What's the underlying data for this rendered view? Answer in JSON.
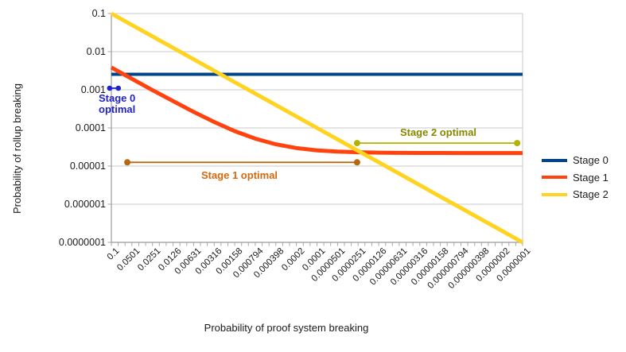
{
  "figure": {
    "y_axis_title": "Probability of rollup breaking",
    "x_axis_title": "Probability of proof system breaking"
  },
  "chart_data": {
    "type": "line",
    "x_scale": "log",
    "y_scale": "log",
    "xlim": [
      0.1,
      1e-07
    ],
    "ylim": [
      0.1,
      1e-07
    ],
    "grid": "horizontal-only",
    "x_tick_labels": [
      "0.1",
      "0.0501",
      "0.0251",
      "0.0126",
      "0.00631",
      "0.00316",
      "0.00158",
      "0.000794",
      "0.000398",
      "0.0002",
      "0.0001",
      "0.0000501",
      "0.0000251",
      "0.0000126",
      "0.00000631",
      "0.00000316",
      "0.00000158",
      "0.000000794",
      "0.000000398",
      "0.0000002",
      "0.0000001"
    ],
    "y_tick_labels": [
      "0.1",
      "0.01",
      "0.001",
      "0.0001",
      "0.00001",
      "0.000001",
      "0.0000001"
    ],
    "x": [
      0.1,
      0.0501,
      0.0251,
      0.0126,
      0.00631,
      0.00316,
      0.00158,
      0.000794,
      0.000398,
      0.0002,
      0.0001,
      5.01e-05,
      2.51e-05,
      1.26e-05,
      6.31e-06,
      3.16e-06,
      1.58e-06,
      7.94e-07,
      3.98e-07,
      2e-07,
      1e-07
    ],
    "series": [
      {
        "name": "Stage 0",
        "color": "#004586",
        "values": [
          0.00255,
          0.00255,
          0.00255,
          0.00255,
          0.00255,
          0.00255,
          0.00255,
          0.00255,
          0.00255,
          0.00255,
          0.00255,
          0.00255,
          0.00255,
          0.00255,
          0.00255,
          0.00255,
          0.00255,
          0.00255,
          0.00255,
          0.00255,
          0.00255
        ]
      },
      {
        "name": "Stage 1",
        "color": "#ff420e",
        "values": [
          0.00385,
          0.00194,
          0.000983,
          0.000505,
          0.000264,
          0.000143,
          8.25e-05,
          5.24e-05,
          3.72e-05,
          2.97e-05,
          2.58e-05,
          2.39e-05,
          2.3e-05,
          2.25e-05,
          2.22e-05,
          2.21e-05,
          2.21e-05,
          2.2e-05,
          2.2e-05,
          2.2e-05,
          2.2e-05
        ]
      },
      {
        "name": "Stage 2",
        "color": "#ffd320",
        "values": [
          0.1,
          0.0501,
          0.0251,
          0.0126,
          0.00631,
          0.00316,
          0.00158,
          0.000794,
          0.000398,
          0.0002,
          0.0001,
          5.01e-05,
          2.51e-05,
          1.26e-05,
          6.31e-06,
          3.16e-06,
          1.58e-06,
          7.94e-07,
          3.98e-07,
          2e-07,
          1e-07
        ]
      }
    ],
    "annotations": [
      {
        "id": "stage0-optimal",
        "label_lines": [
          "Stage 0",
          "optimal"
        ],
        "text_color": "#2222cc",
        "line_color": "#2222cc",
        "dot_radius": 3.3,
        "x1": 0.106,
        "x2": 0.079,
        "y": 0.0011
      },
      {
        "id": "stage1-optimal",
        "label_lines": [
          "Stage 1 optimal"
        ],
        "text_color": "#d2690f",
        "line_color": "#b4690e",
        "dot_radius": 4,
        "x1": 0.0585,
        "x2": 2.6e-05,
        "y": 1.25e-05
      },
      {
        "id": "stage2-optimal",
        "label_lines": [
          "Stage 2 optimal"
        ],
        "text_color": "#878700",
        "line_color": "#b2b200",
        "dot_radius": 4,
        "x1": 2.6e-05,
        "x2": 1.2e-07,
        "y": 4e-05
      }
    ],
    "legend": {
      "position": "right",
      "items": [
        "Stage 0",
        "Stage 1",
        "Stage 2"
      ]
    }
  }
}
